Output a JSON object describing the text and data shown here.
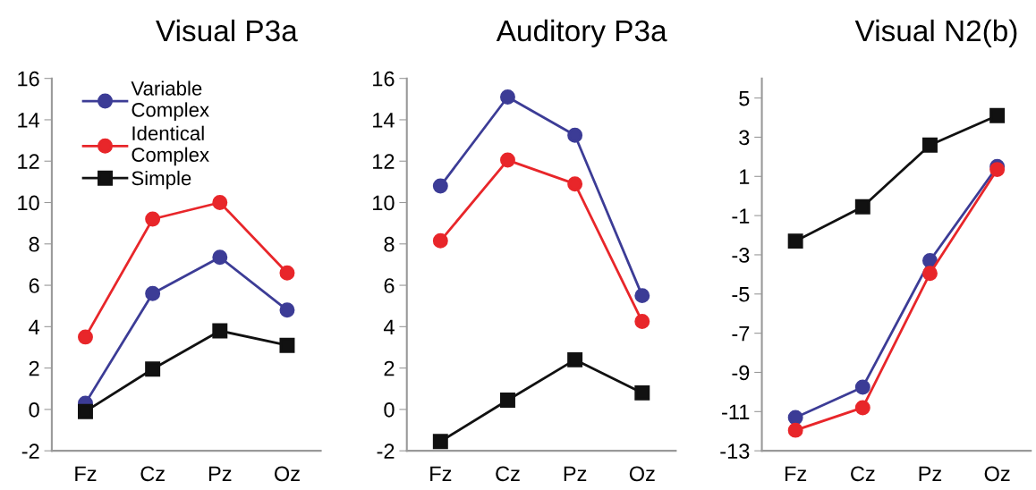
{
  "chart_data": [
    {
      "type": "line",
      "title": "Visual P3a",
      "categories": [
        "Fz",
        "Cz",
        "Pz",
        "Oz"
      ],
      "ylim": [
        -2,
        16
      ],
      "yticks": [
        -2,
        0,
        2,
        4,
        6,
        8,
        10,
        12,
        14,
        16
      ],
      "grid": false,
      "legend": "top left",
      "line_style": "solid",
      "series": [
        {
          "name": "Variable\nComplex",
          "color": "#3c3c96",
          "marker": "circle",
          "values": [
            0.3,
            5.6,
            7.35,
            4.8
          ]
        },
        {
          "name": "Identical\nComplex",
          "color": "#e8262a",
          "marker": "circle",
          "values": [
            3.5,
            9.2,
            10.0,
            6.6
          ]
        },
        {
          "name": "Simple",
          "color": "#111111",
          "marker": "square",
          "values": [
            -0.1,
            1.95,
            3.8,
            3.1
          ]
        }
      ]
    },
    {
      "type": "line",
      "title": "Auditory P3a",
      "categories": [
        "Fz",
        "Cz",
        "Pz",
        "Oz"
      ],
      "ylim": [
        -2,
        16
      ],
      "yticks": [
        -2,
        0,
        2,
        4,
        6,
        8,
        10,
        12,
        14,
        16
      ],
      "grid": false,
      "line_style": "solid",
      "series": [
        {
          "color": "#3c3c96",
          "marker": "circle",
          "values": [
            10.8,
            15.1,
            13.25,
            5.5
          ]
        },
        {
          "color": "#e8262a",
          "marker": "circle",
          "values": [
            8.15,
            12.05,
            10.9,
            4.25
          ]
        },
        {
          "color": "#111111",
          "marker": "square",
          "values": [
            -1.55,
            0.45,
            2.4,
            0.8
          ]
        }
      ]
    },
    {
      "type": "line",
      "title": "Visual N2(b)",
      "categories": [
        "Fz",
        "Cz",
        "Pz",
        "Oz"
      ],
      "ylim": [
        -13,
        6
      ],
      "yticks": [
        -13,
        -11,
        -9,
        -7,
        -5,
        -3,
        -1,
        1,
        3,
        5
      ],
      "grid": false,
      "line_style": "solid",
      "series": [
        {
          "color": "#3c3c96",
          "marker": "circle",
          "values": [
            -11.3,
            -9.75,
            -3.3,
            1.5
          ]
        },
        {
          "color": "#e8262a",
          "marker": "circle",
          "values": [
            -11.95,
            -10.8,
            -3.95,
            1.35
          ]
        },
        {
          "color": "#111111",
          "marker": "square",
          "values": [
            -2.3,
            -0.55,
            2.6,
            4.1
          ]
        }
      ]
    }
  ]
}
